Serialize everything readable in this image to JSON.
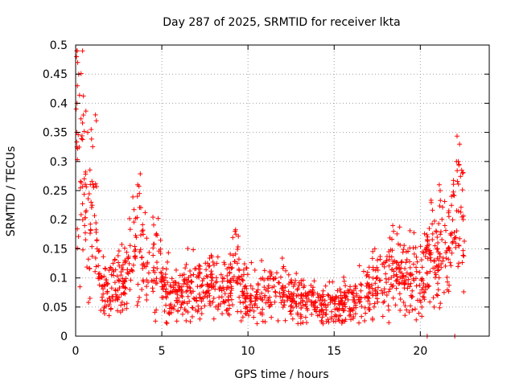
{
  "chart_data": {
    "type": "scatter",
    "title": "Day 287 of 2025, SRMTID for receiver lkta",
    "xlabel": "GPS time / hours",
    "ylabel": "SRMTID / TECUs",
    "xlim": [
      0,
      24
    ],
    "ylim": [
      0,
      0.5
    ],
    "xticks": [
      0,
      5,
      10,
      15,
      20
    ],
    "xtick_labels": [
      "0",
      "5",
      "10",
      "15",
      "20"
    ],
    "yticks": [
      0,
      0.05,
      0.1,
      0.15,
      0.2,
      0.25,
      0.3,
      0.35,
      0.4,
      0.45,
      0.5
    ],
    "ytick_labels": [
      "0",
      "0.05",
      "0.1",
      "0.15",
      "0.2",
      "0.25",
      "0.3",
      "0.35",
      "0.4",
      "0.45",
      "0.5"
    ],
    "grid": true,
    "marker": "+",
    "color": "#ff0000",
    "point_count": 1400,
    "series": [
      {
        "name": "SRMTID",
        "trend": [
          [
            0.0,
            0.36
          ],
          [
            0.2,
            0.38
          ],
          [
            0.5,
            0.24
          ],
          [
            0.8,
            0.18
          ],
          [
            1.0,
            0.22
          ],
          [
            1.3,
            0.12
          ],
          [
            1.6,
            0.09
          ],
          [
            2.0,
            0.085
          ],
          [
            2.5,
            0.09
          ],
          [
            3.0,
            0.1
          ],
          [
            3.5,
            0.17
          ],
          [
            3.8,
            0.15
          ],
          [
            4.2,
            0.11
          ],
          [
            4.6,
            0.14
          ],
          [
            5.0,
            0.09
          ],
          [
            6.0,
            0.075
          ],
          [
            7.0,
            0.08
          ],
          [
            8.0,
            0.085
          ],
          [
            9.0,
            0.09
          ],
          [
            9.3,
            0.12
          ],
          [
            9.6,
            0.08
          ],
          [
            10.5,
            0.07
          ],
          [
            11.5,
            0.085
          ],
          [
            12.5,
            0.07
          ],
          [
            13.5,
            0.06
          ],
          [
            14.5,
            0.05
          ],
          [
            15.0,
            0.06
          ],
          [
            16.0,
            0.05
          ],
          [
            16.5,
            0.065
          ],
          [
            17.5,
            0.085
          ],
          [
            18.5,
            0.11
          ],
          [
            19.5,
            0.12
          ],
          [
            20.2,
            0.1
          ],
          [
            20.7,
            0.17
          ],
          [
            21.0,
            0.12
          ],
          [
            21.5,
            0.14
          ],
          [
            22.0,
            0.2
          ],
          [
            22.3,
            0.22
          ],
          [
            22.6,
            0.16
          ]
        ],
        "outliers": [
          [
            0.05,
            0.48
          ],
          [
            0.12,
            0.47
          ],
          [
            0.18,
            0.45
          ],
          [
            0.1,
            0.43
          ],
          [
            0.08,
            0.4
          ],
          [
            0.03,
            0.39
          ],
          [
            1.15,
            0.38
          ],
          [
            1.2,
            0.37
          ],
          [
            0.7,
            0.35
          ],
          [
            0.9,
            0.355
          ],
          [
            3.6,
            0.26
          ],
          [
            3.7,
            0.245
          ],
          [
            9.25,
            0.18
          ],
          [
            9.3,
            0.175
          ],
          [
            18.4,
            0.19
          ],
          [
            18.45,
            0.18
          ],
          [
            21.1,
            0.26
          ],
          [
            21.15,
            0.25
          ],
          [
            22.1,
            0.3
          ],
          [
            22.25,
            0.295
          ],
          [
            22.4,
            0.285
          ],
          [
            22.45,
            0.28
          ],
          [
            20.4,
            0.0
          ],
          [
            22.0,
            0.0
          ],
          [
            14.55,
            0.025
          ],
          [
            15.5,
            0.025
          ],
          [
            19.2,
            0.045
          ],
          [
            20.8,
            0.05
          ]
        ]
      }
    ]
  }
}
